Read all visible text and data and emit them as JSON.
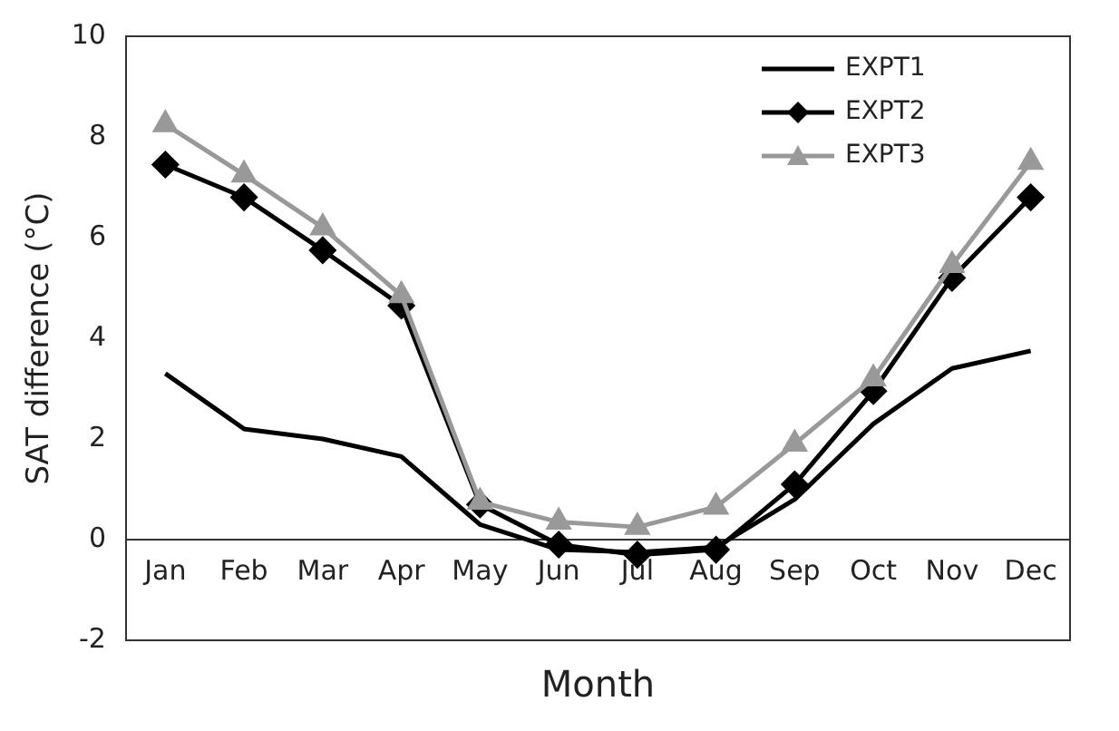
{
  "chart_data": {
    "type": "line",
    "xlabel": "Month",
    "ylabel": "SAT difference (°C)",
    "categories": [
      "Jan",
      "Feb",
      "Mar",
      "Apr",
      "May",
      "Jun",
      "Jul",
      "Aug",
      "Sep",
      "Oct",
      "Nov",
      "Dec"
    ],
    "ylim": [
      -2,
      10
    ],
    "yticks": [
      -2,
      0,
      2,
      4,
      6,
      8,
      10
    ],
    "grid": false,
    "legend": "top right",
    "line_style": "solid",
    "series": [
      {
        "name": "EXPT1",
        "color": "#000000",
        "marker": "none",
        "values": [
          3.3,
          2.2,
          2.0,
          1.65,
          0.3,
          -0.2,
          -0.25,
          -0.15,
          0.8,
          2.3,
          3.4,
          3.75
        ]
      },
      {
        "name": "EXPT2",
        "color": "#000000",
        "marker": "diamond",
        "values": [
          7.45,
          6.8,
          5.75,
          4.65,
          0.7,
          -0.1,
          -0.3,
          -0.2,
          1.1,
          2.95,
          5.2,
          6.8
        ]
      },
      {
        "name": "EXPT3",
        "color": "#999999",
        "marker": "triangle",
        "values": [
          8.25,
          7.25,
          6.2,
          4.85,
          0.75,
          0.35,
          0.25,
          0.65,
          1.9,
          3.2,
          5.45,
          7.5
        ]
      }
    ]
  }
}
